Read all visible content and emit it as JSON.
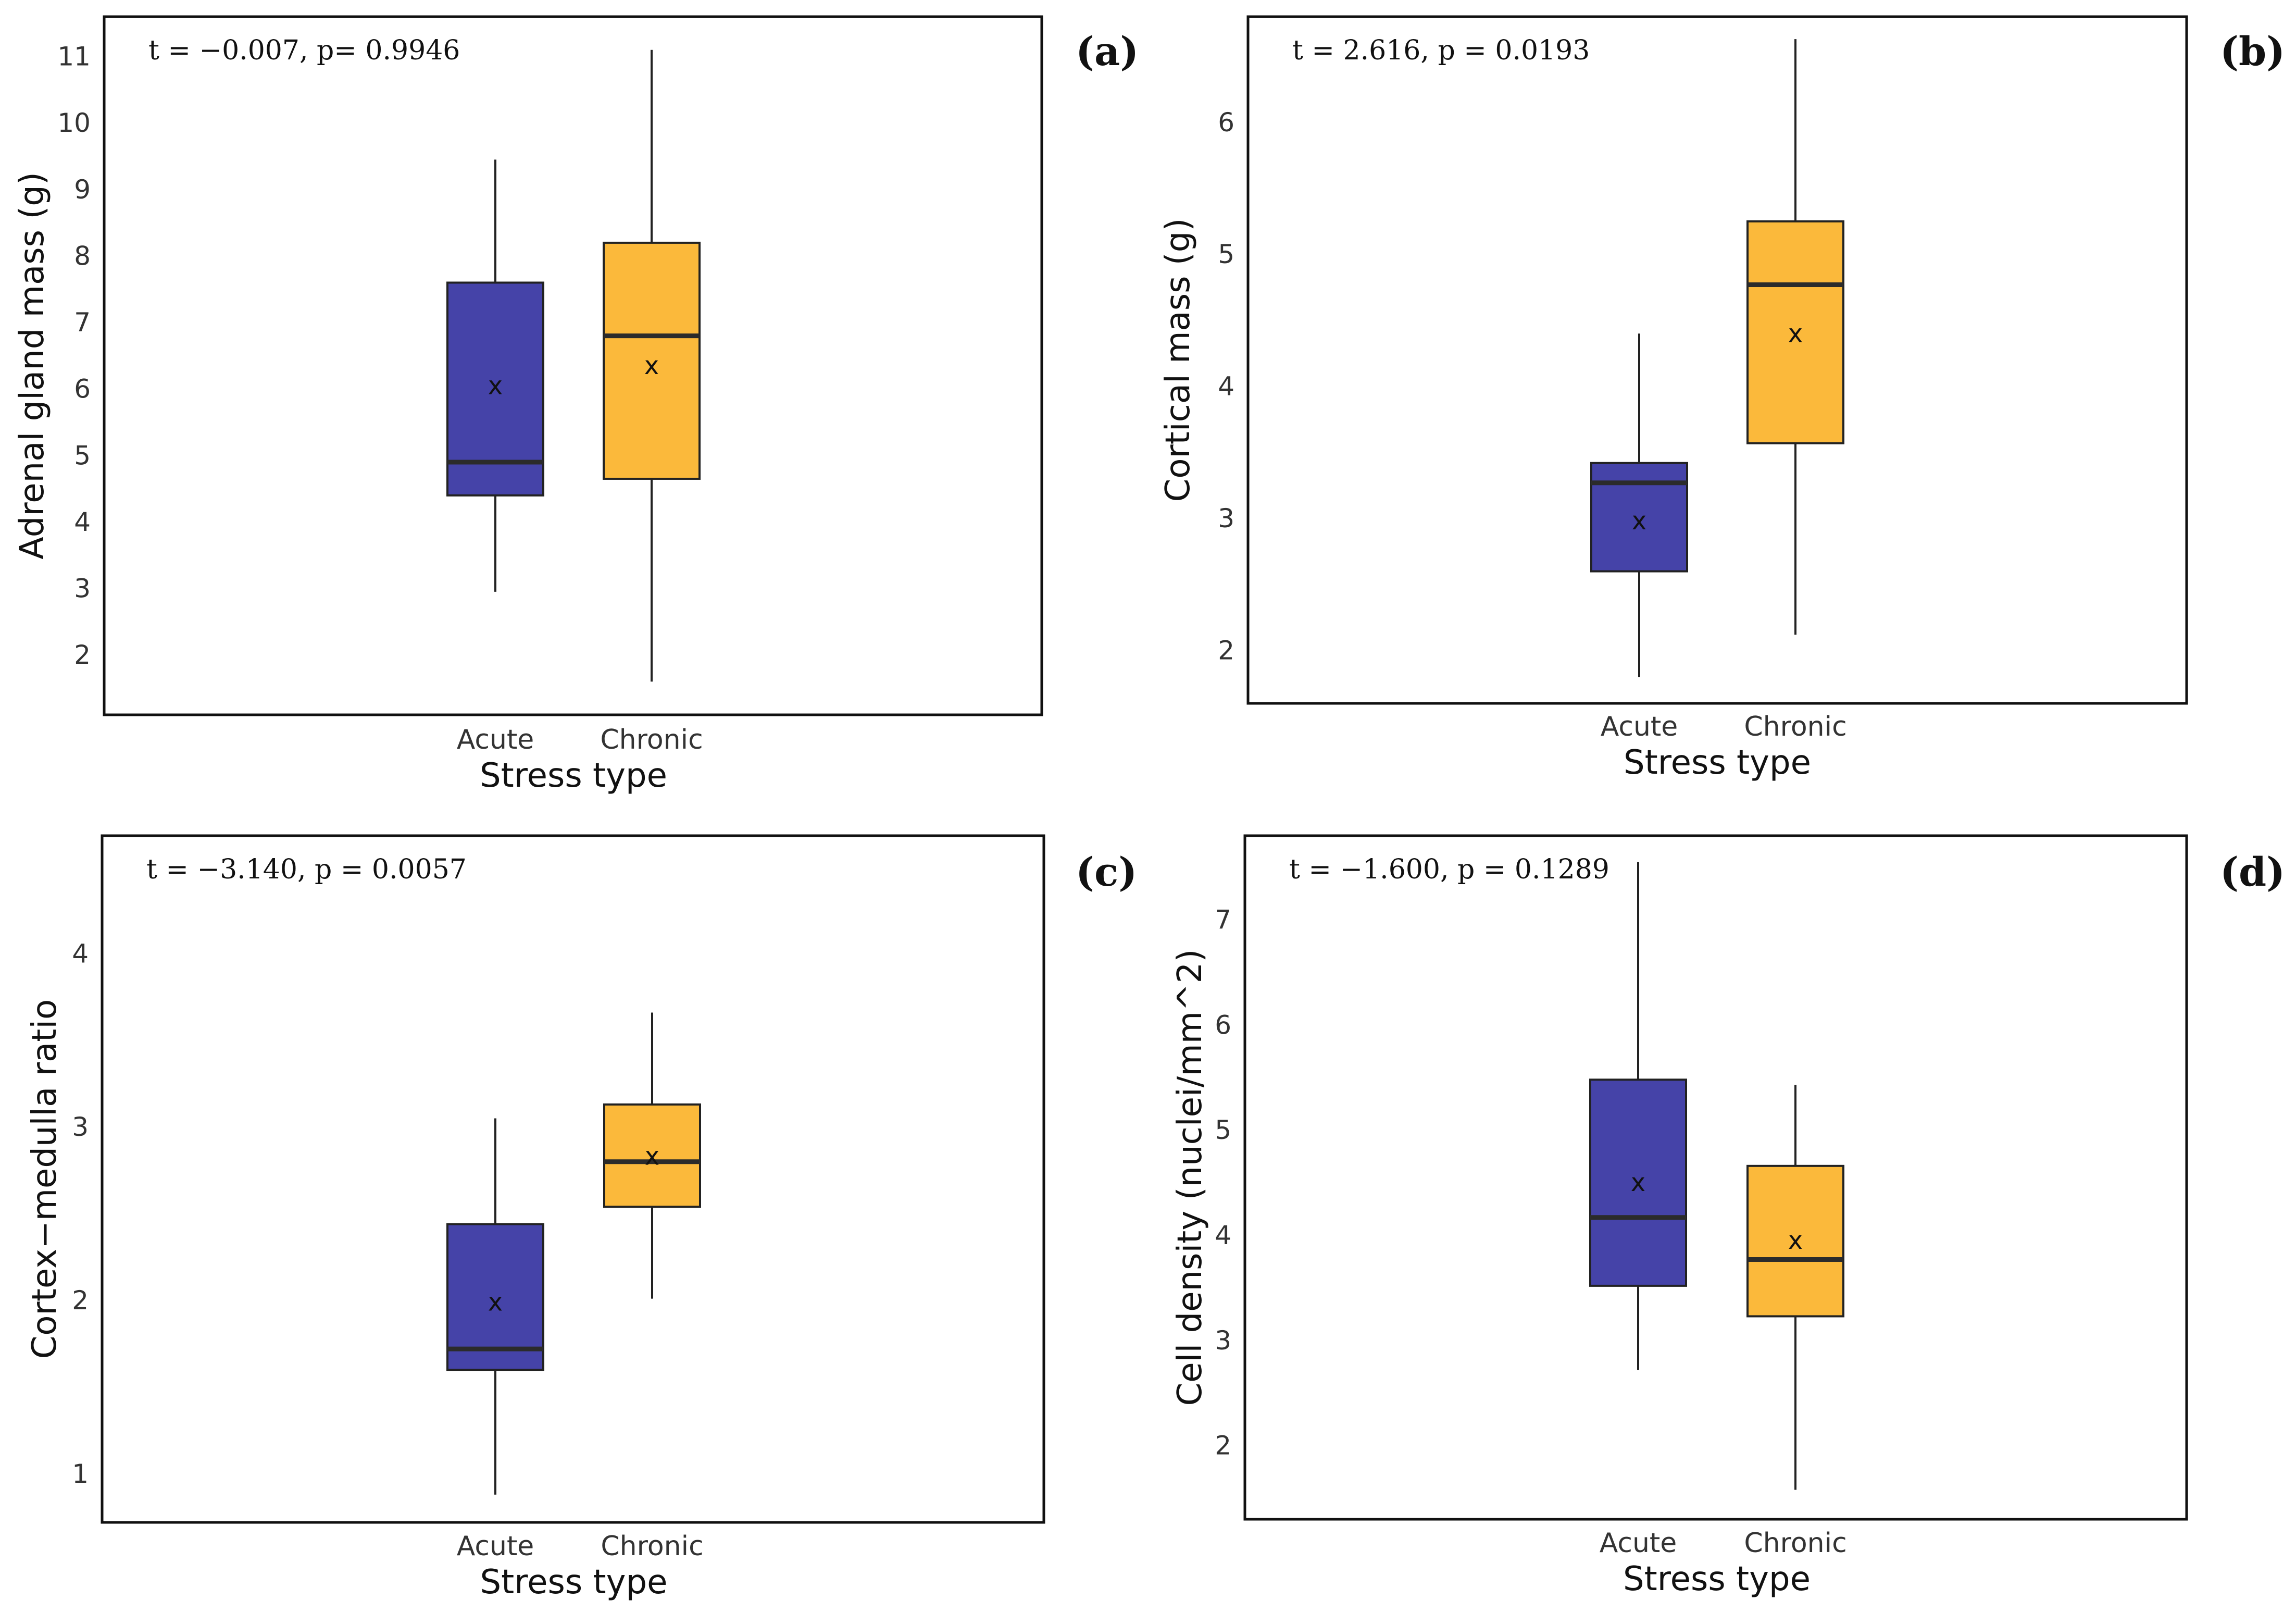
{
  "chart_data": [
    {
      "type": "box",
      "panel_label": "(a)",
      "stat_text": "t = −0.007,  p= 0.9946",
      "xlabel": "Stress type",
      "ylabel": "Adrenal gland mass (g)",
      "ylim": [
        1.1,
        11.6
      ],
      "yticks": [
        "2",
        "3",
        "4",
        "5",
        "6",
        "7",
        "8",
        "9",
        "10",
        "11"
      ],
      "categories": [
        "Acute",
        "Chronic"
      ],
      "colors": [
        "#4543a8",
        "#fbb93b"
      ],
      "boxes": [
        {
          "category": "Acute",
          "min": 2.95,
          "q1": 4.4,
          "median": 4.9,
          "q3": 7.6,
          "max": 9.45,
          "mean": 6.05
        },
        {
          "category": "Chronic",
          "min": 1.6,
          "q1": 4.65,
          "median": 6.8,
          "q3": 8.2,
          "max": 11.1,
          "mean": 6.35
        }
      ]
    },
    {
      "type": "box",
      "panel_label": "(b)",
      "stat_text": "t = 2.616, p = 0.0193",
      "xlabel": "Stress type",
      "ylabel": "Cortical mass (g)",
      "ylim": [
        1.6,
        6.8
      ],
      "yticks": [
        "2",
        "3",
        "4",
        "5",
        "6"
      ],
      "categories": [
        "Acute",
        "Chronic"
      ],
      "colors": [
        "#4543a8",
        "#fbb93b"
      ],
      "boxes": [
        {
          "category": "Acute",
          "min": 1.8,
          "q1": 2.6,
          "median": 3.27,
          "q3": 3.42,
          "max": 4.4,
          "mean": 2.98
        },
        {
          "category": "Chronic",
          "min": 2.12,
          "q1": 3.57,
          "median": 4.77,
          "q3": 5.25,
          "max": 6.63,
          "mean": 4.4
        }
      ]
    },
    {
      "type": "box",
      "panel_label": "(c)",
      "stat_text": "t = −3.140, p = 0.0057",
      "xlabel": "Stress type",
      "ylabel": "Cortex−medulla ratio",
      "ylim": [
        0.72,
        4.68
      ],
      "yticks": [
        "1",
        "2",
        "3",
        "4"
      ],
      "categories": [
        "Acute",
        "Chronic"
      ],
      "colors": [
        "#4543a8",
        "#fbb93b"
      ],
      "boxes": [
        {
          "category": "Acute",
          "min": 0.88,
          "q1": 1.6,
          "median": 1.72,
          "q3": 2.44,
          "max": 3.05,
          "mean": 1.99
        },
        {
          "category": "Chronic",
          "min": 2.01,
          "q1": 2.54,
          "median": 2.8,
          "q3": 3.13,
          "max": 3.66,
          "mean": 2.83
        }
      ]
    },
    {
      "type": "box",
      "panel_label": "(d)",
      "stat_text": "t = −1.600, p = 0.1289",
      "xlabel": "Stress type",
      "ylabel": "Cell density (nuclei/mm^2)",
      "ylim": [
        1.3,
        7.8
      ],
      "yticks": [
        "2",
        "3",
        "4",
        "5",
        "6",
        "7"
      ],
      "categories": [
        "Acute",
        "Chronic"
      ],
      "colors": [
        "#4543a8",
        "#fbb93b"
      ],
      "boxes": [
        {
          "category": "Acute",
          "min": 2.72,
          "q1": 3.52,
          "median": 4.17,
          "q3": 5.48,
          "max": 7.55,
          "mean": 4.5
        },
        {
          "category": "Chronic",
          "min": 1.58,
          "q1": 3.23,
          "median": 3.77,
          "q3": 4.66,
          "max": 5.43,
          "mean": 3.95
        }
      ]
    }
  ]
}
